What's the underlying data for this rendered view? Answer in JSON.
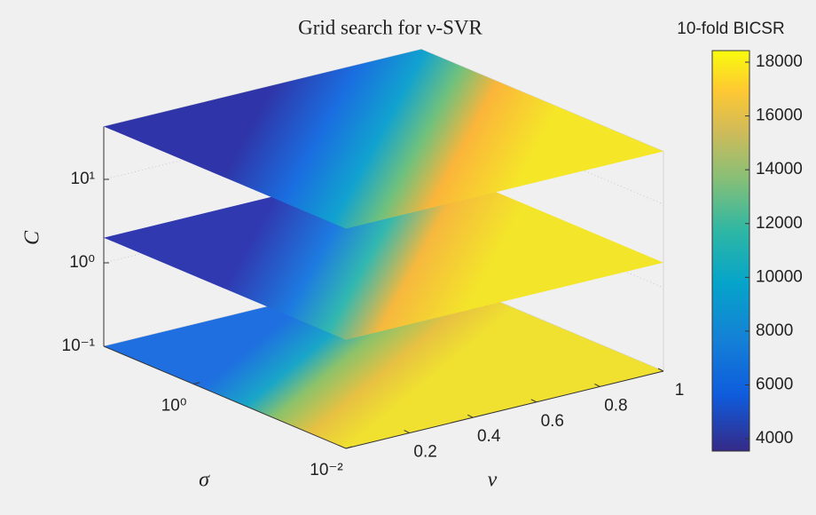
{
  "chart_data": {
    "type": "slice",
    "title": "Grid search for ν-SVR",
    "xlabel": "ν",
    "ylabel": "σ",
    "zlabel": "C",
    "xlim": [
      0,
      1
    ],
    "xticks": [
      0.2,
      0.4,
      0.6,
      0.8,
      1
    ],
    "ylim": [
      0.01,
      15
    ],
    "yscale": "log",
    "yticks": [
      {
        "value": 1,
        "label": "10⁰"
      },
      {
        "value": 0.01,
        "label": "10⁻²"
      }
    ],
    "zlim": [
      0.1,
      43
    ],
    "zscale": "log",
    "zticks": [
      {
        "value": 0.1,
        "label": "10⁻¹"
      },
      {
        "value": 1,
        "label": "10⁰"
      },
      {
        "value": 10,
        "label": "10¹"
      }
    ],
    "slices": [
      0.1,
      2,
      43
    ],
    "grid": true,
    "colorbar": {
      "label": "10-fold BICSR",
      "clim": [
        3540,
        18430
      ],
      "ticks": [
        4000,
        6000,
        8000,
        10000,
        12000,
        14000,
        16000,
        18000
      ]
    }
  }
}
